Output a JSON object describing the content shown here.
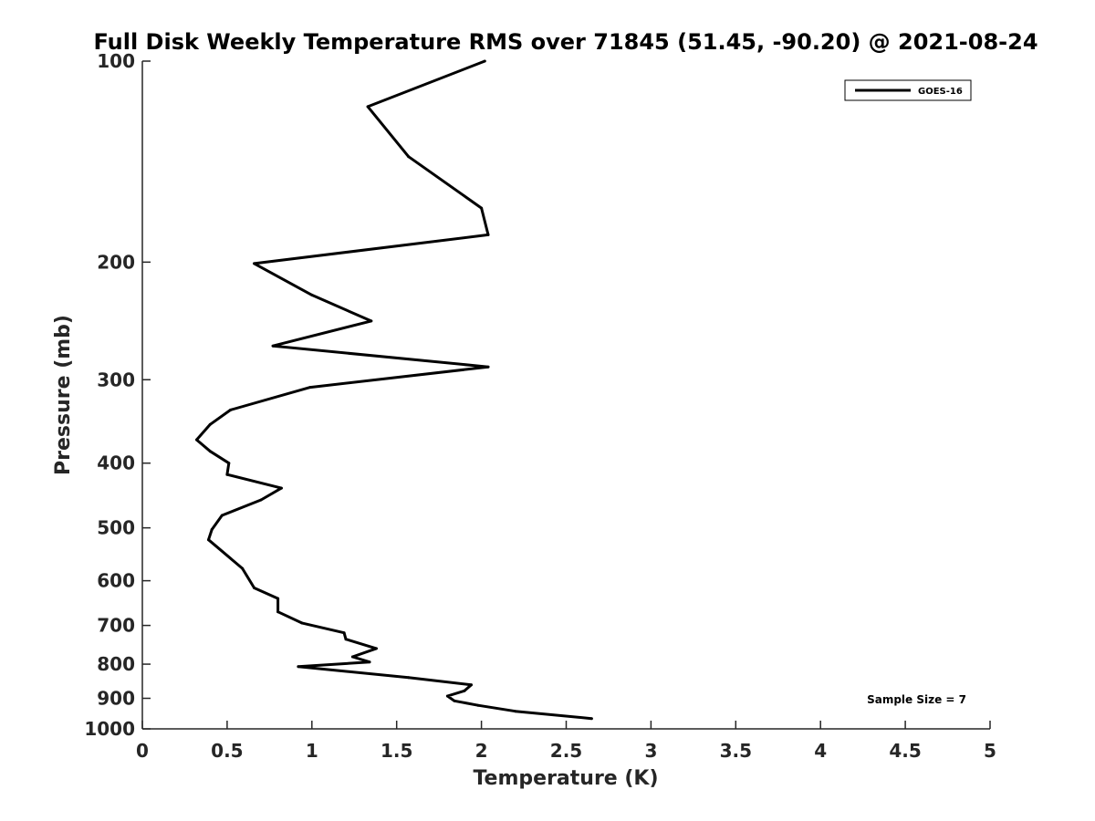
{
  "chart_data": {
    "type": "line",
    "title": "Full Disk Weekly Temperature RMS over 71845 (51.45, -90.20) @ 2021-08-24",
    "xlabel": "Temperature (K)",
    "ylabel": "Pressure (mb)",
    "xlim": [
      0,
      5
    ],
    "ylim": [
      100,
      1000
    ],
    "yscale": "log",
    "yreversed": true,
    "x_ticks": [
      "0",
      "0.5",
      "1",
      "1.5",
      "2",
      "2.5",
      "3",
      "3.5",
      "4",
      "4.5",
      "5"
    ],
    "y_ticks": [
      "100",
      "200",
      "300",
      "400",
      "500",
      "600",
      "700",
      "800",
      "900",
      "1000"
    ],
    "grid": false,
    "legend": {
      "position": "top-right",
      "entries": [
        "GOES-16"
      ]
    },
    "annotation": "Sample Size = 7",
    "series": [
      {
        "name": "GOES-16",
        "color": "#000000",
        "points": [
          [
            2.02,
            100
          ],
          [
            1.33,
            117
          ],
          [
            1.57,
            139
          ],
          [
            2.0,
            166
          ],
          [
            2.04,
            182
          ],
          [
            0.66,
            201
          ],
          [
            1.0,
            224
          ],
          [
            1.35,
            245
          ],
          [
            0.77,
            267
          ],
          [
            2.04,
            287
          ],
          [
            0.99,
            308
          ],
          [
            0.52,
            333
          ],
          [
            0.4,
            350
          ],
          [
            0.32,
            369
          ],
          [
            0.4,
            384
          ],
          [
            0.51,
            400
          ],
          [
            0.5,
            416
          ],
          [
            0.82,
            436
          ],
          [
            0.7,
            454
          ],
          [
            0.47,
            479
          ],
          [
            0.41,
            503
          ],
          [
            0.39,
            521
          ],
          [
            0.59,
            575
          ],
          [
            0.66,
            615
          ],
          [
            0.8,
            638
          ],
          [
            0.8,
            668
          ],
          [
            0.94,
            694
          ],
          [
            1.19,
            718
          ],
          [
            1.2,
            734
          ],
          [
            1.38,
            758
          ],
          [
            1.24,
            780
          ],
          [
            1.34,
            794
          ],
          [
            0.92,
            807
          ],
          [
            1.57,
            838
          ],
          [
            1.94,
            859
          ],
          [
            1.9,
            877
          ],
          [
            1.8,
            893
          ],
          [
            1.84,
            908
          ],
          [
            1.98,
            922
          ],
          [
            2.2,
            941
          ],
          [
            2.65,
            965
          ]
        ]
      }
    ]
  }
}
